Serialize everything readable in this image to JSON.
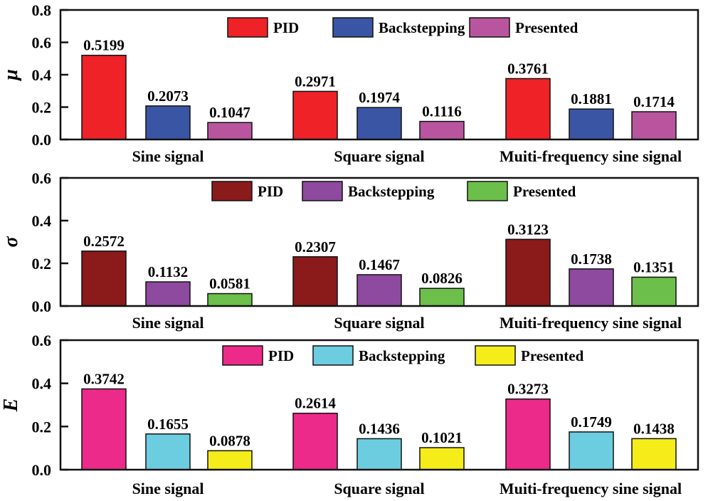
{
  "chart_data": [
    {
      "type": "bar",
      "ylabel": "μ",
      "ylim": [
        0,
        0.8
      ],
      "yticks": [
        "0.0",
        "0.2",
        "0.4",
        "0.6",
        "0.8"
      ],
      "categories": [
        "Sine signal",
        "Square signal",
        "Muiti-frequency sine signal"
      ],
      "legend_placement": "top-center",
      "series": [
        {
          "name": "PID",
          "color": "#ee2227",
          "values": [
            0.5199,
            0.2971,
            0.3761
          ]
        },
        {
          "name": "Backstepping",
          "color": "#3a55a4",
          "values": [
            0.2073,
            0.1974,
            0.1881
          ]
        },
        {
          "name": "Presented",
          "color": "#b9559f",
          "values": [
            0.1047,
            0.1116,
            0.1714
          ]
        }
      ]
    },
    {
      "type": "bar",
      "ylabel": "σ",
      "ylim": [
        0,
        0.6
      ],
      "yticks": [
        "0.0",
        "0.2",
        "0.4",
        "0.6"
      ],
      "categories": [
        "Sine signal",
        "Square signal",
        "Muiti-frequency sine signal"
      ],
      "legend_placement": "top-center",
      "series": [
        {
          "name": "PID",
          "color": "#8b1a1a",
          "values": [
            0.2572,
            0.2307,
            0.3123
          ]
        },
        {
          "name": "Backstepping",
          "color": "#8e4a9e",
          "values": [
            0.1132,
            0.1467,
            0.1738
          ]
        },
        {
          "name": "Presented",
          "color": "#6cbf4a",
          "values": [
            0.0581,
            0.0826,
            0.1351
          ]
        }
      ]
    },
    {
      "type": "bar",
      "ylabel": "E",
      "ylim": [
        0,
        0.6
      ],
      "yticks": [
        "0.0",
        "0.2",
        "0.4",
        "0.6"
      ],
      "categories": [
        "Sine signal",
        "Square signal",
        "Muiti-frequency sine signal"
      ],
      "legend_placement": "top-center",
      "series": [
        {
          "name": "PID",
          "color": "#ec2a8a",
          "values": [
            0.3742,
            0.2614,
            0.3273
          ]
        },
        {
          "name": "Backstepping",
          "color": "#6ccde0",
          "values": [
            0.1655,
            0.1436,
            0.1749
          ]
        },
        {
          "name": "Presented",
          "color": "#f5ec1a",
          "values": [
            0.0878,
            0.1021,
            0.1438
          ]
        }
      ]
    }
  ]
}
